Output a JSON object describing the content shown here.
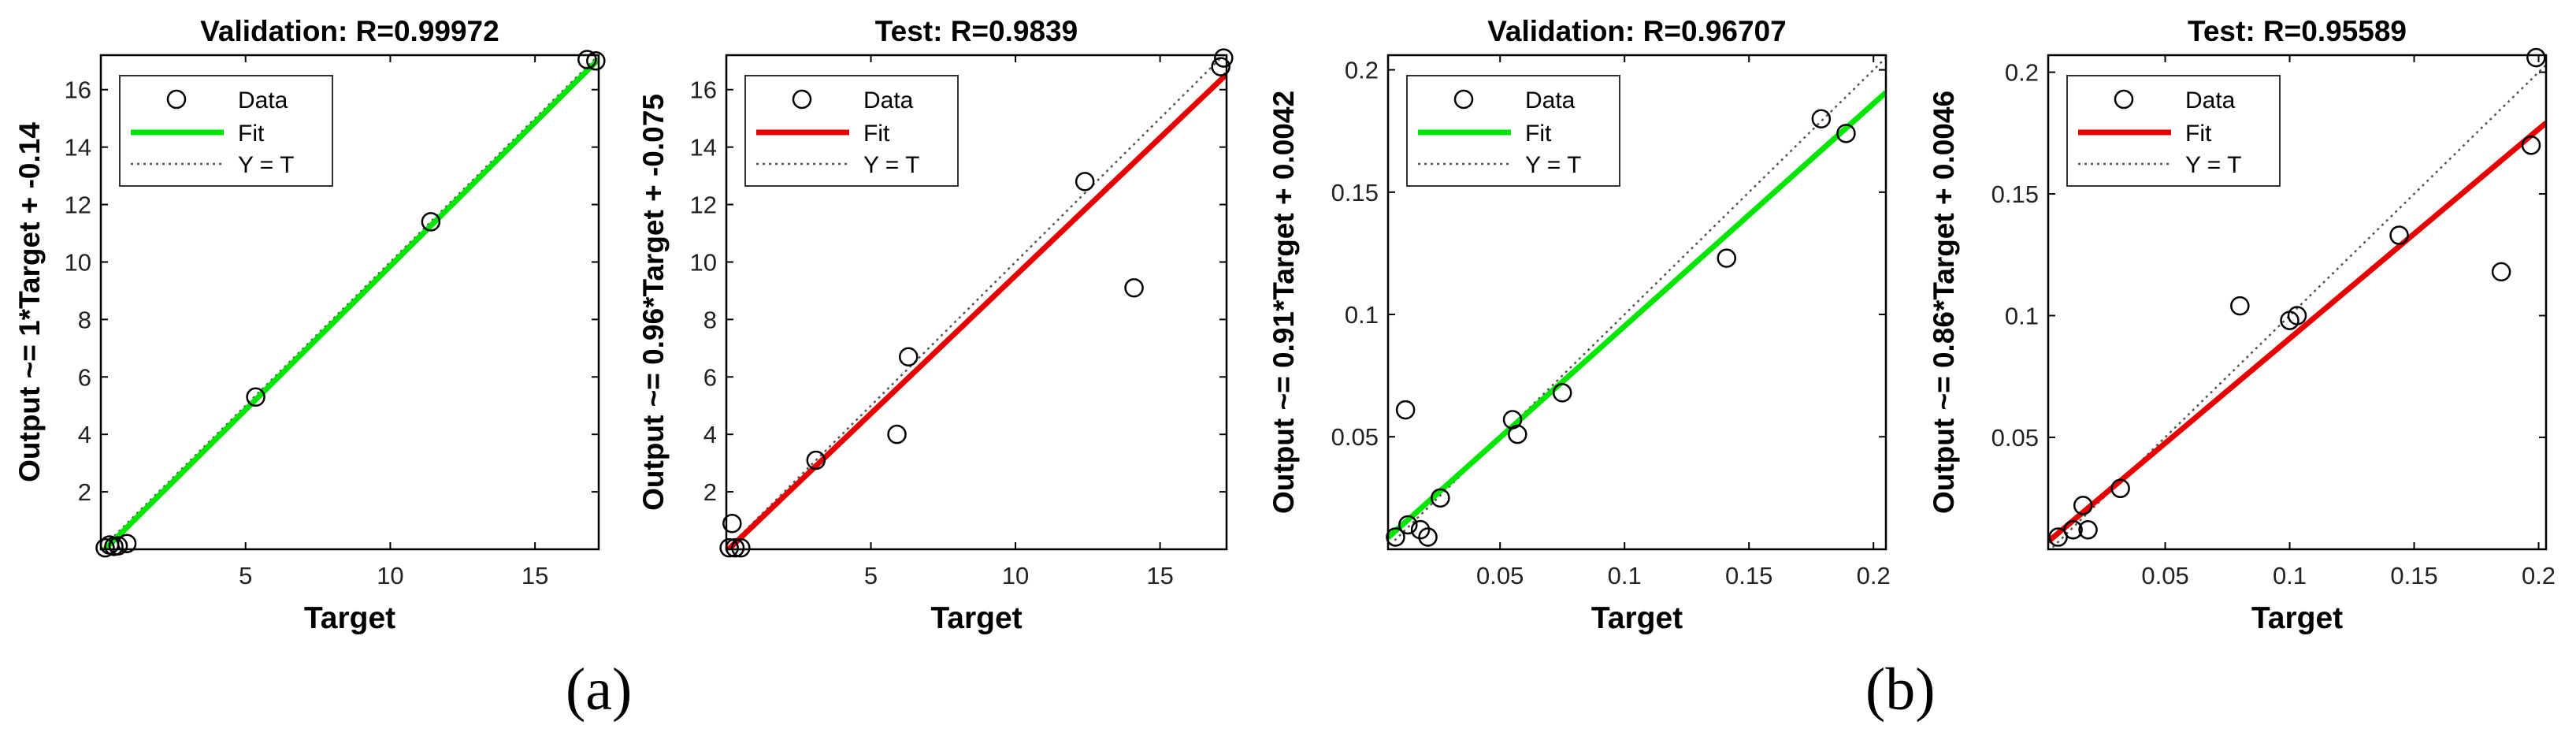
{
  "figure_labels": {
    "a": "(a)",
    "b": "(b)"
  },
  "colors": {
    "green_fit": "#00e600",
    "red_fit": "#e60000",
    "marker": "#000000",
    "identity": "#555555"
  },
  "legend": {
    "data": "Data",
    "fit": "Fit",
    "identity": "Y = T"
  },
  "chart_data": [
    {
      "type": "scatter",
      "title": "Validation: R=0.99972",
      "xlabel": "Target",
      "ylabel": "Output ~= 1*Target + -0.14",
      "xlim": [
        0,
        17.2
      ],
      "ylim": [
        0,
        17.2
      ],
      "xticks": [
        5,
        10,
        15
      ],
      "yticks": [
        2,
        4,
        6,
        8,
        10,
        12,
        14,
        16
      ],
      "fit": {
        "slope": 1,
        "intercept": -0.14,
        "color": "green"
      },
      "legend_position": "top-left",
      "grid": false,
      "points": [
        [
          0.15,
          0.05
        ],
        [
          0.3,
          0.15
        ],
        [
          0.45,
          0.1
        ],
        [
          0.6,
          0.12
        ],
        [
          0.9,
          0.2
        ],
        [
          5.35,
          5.3
        ],
        [
          11.4,
          11.4
        ],
        [
          16.8,
          17.05
        ],
        [
          17.1,
          17.0
        ]
      ]
    },
    {
      "type": "scatter",
      "title": "Test: R=0.9839",
      "xlabel": "Target",
      "ylabel": "Output ~= 0.96*Target + -0.075",
      "xlim": [
        0,
        17.3
      ],
      "ylim": [
        0,
        17.2
      ],
      "xticks": [
        5,
        10,
        15
      ],
      "yticks": [
        2,
        4,
        6,
        8,
        10,
        12,
        14,
        16
      ],
      "fit": {
        "slope": 0.96,
        "intercept": -0.075,
        "color": "red"
      },
      "legend_position": "top-left",
      "grid": false,
      "points": [
        [
          0.1,
          0.05
        ],
        [
          0.2,
          0.9
        ],
        [
          0.3,
          0.05
        ],
        [
          0.5,
          0.05
        ],
        [
          3.1,
          3.1
        ],
        [
          5.9,
          4.0
        ],
        [
          6.3,
          6.7
        ],
        [
          12.4,
          12.8
        ],
        [
          14.1,
          9.1
        ],
        [
          17.1,
          16.8
        ],
        [
          17.2,
          17.1
        ]
      ]
    },
    {
      "type": "scatter",
      "title": "Validation: R=0.96707",
      "xlabel": "Target",
      "ylabel": "Output ~= 0.91*Target + 0.0042",
      "xlim": [
        0.005,
        0.205
      ],
      "ylim": [
        0.004,
        0.206
      ],
      "xticks": [
        0.05,
        0.1,
        0.15,
        0.2
      ],
      "yticks": [
        0.05,
        0.1,
        0.15,
        0.2
      ],
      "fit": {
        "slope": 0.91,
        "intercept": 0.0042,
        "color": "green"
      },
      "legend_position": "top-left",
      "grid": false,
      "points": [
        [
          0.008,
          0.009
        ],
        [
          0.012,
          0.061
        ],
        [
          0.013,
          0.014
        ],
        [
          0.018,
          0.012
        ],
        [
          0.021,
          0.009
        ],
        [
          0.026,
          0.025
        ],
        [
          0.055,
          0.057
        ],
        [
          0.057,
          0.051
        ],
        [
          0.075,
          0.068
        ],
        [
          0.141,
          0.123
        ],
        [
          0.179,
          0.18
        ],
        [
          0.189,
          0.174
        ]
      ]
    },
    {
      "type": "scatter",
      "title": "Test: R=0.95589",
      "xlabel": "Target",
      "ylabel": "Output ~= 0.86*Target + 0.0046",
      "xlim": [
        0.003,
        0.203
      ],
      "ylim": [
        0.004,
        0.207
      ],
      "xticks": [
        0.05,
        0.1,
        0.15,
        0.2
      ],
      "yticks": [
        0.05,
        0.1,
        0.15,
        0.2
      ],
      "fit": {
        "slope": 0.86,
        "intercept": 0.0046,
        "color": "red"
      },
      "legend_position": "top-left",
      "grid": false,
      "points": [
        [
          0.007,
          0.009
        ],
        [
          0.013,
          0.012
        ],
        [
          0.017,
          0.022
        ],
        [
          0.019,
          0.012
        ],
        [
          0.032,
          0.029
        ],
        [
          0.08,
          0.104
        ],
        [
          0.1,
          0.098
        ],
        [
          0.103,
          0.1
        ],
        [
          0.144,
          0.133
        ],
        [
          0.185,
          0.118
        ],
        [
          0.197,
          0.17
        ],
        [
          0.199,
          0.206
        ]
      ]
    }
  ]
}
